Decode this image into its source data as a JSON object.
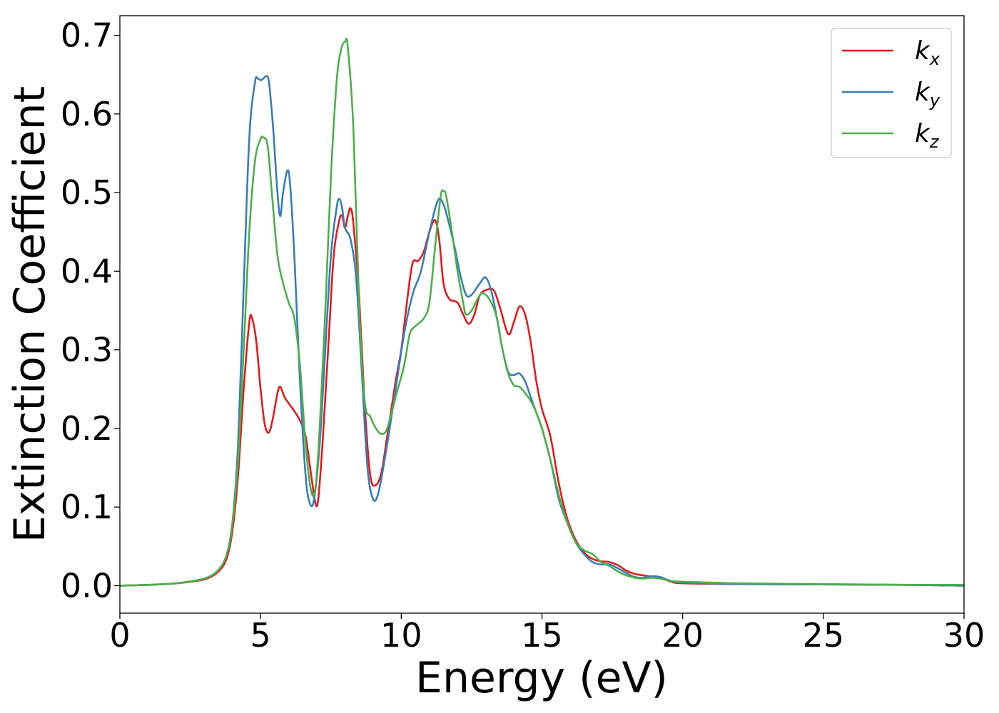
{
  "chart_data": {
    "type": "line",
    "xlabel": "Energy (eV)",
    "ylabel": "Extinction Coefficient",
    "xlim": [
      0,
      30
    ],
    "ylim": [
      -0.035,
      0.725
    ],
    "xticks": [
      0,
      5,
      10,
      15,
      20,
      25,
      30
    ],
    "xtick_labels": [
      "0",
      "5",
      "10",
      "15",
      "20",
      "25",
      "30"
    ],
    "yticks": [
      0.0,
      0.1,
      0.2,
      0.3,
      0.4,
      0.5,
      0.6,
      0.7
    ],
    "ytick_labels": [
      "0.0",
      "0.1",
      "0.2",
      "0.3",
      "0.4",
      "0.5",
      "0.6",
      "0.7"
    ],
    "grid": false,
    "legend_position": "top-right",
    "series": [
      {
        "name": "k",
        "subscript": "x",
        "color": "#e41a1c",
        "points": [
          [
            0,
            0.0
          ],
          [
            1,
            0.001
          ],
          [
            2,
            0.003
          ],
          [
            3,
            0.008
          ],
          [
            3.5,
            0.018
          ],
          [
            3.8,
            0.035
          ],
          [
            4.0,
            0.07
          ],
          [
            4.2,
            0.14
          ],
          [
            4.4,
            0.25
          ],
          [
            4.6,
            0.335
          ],
          [
            4.7,
            0.34
          ],
          [
            4.85,
            0.31
          ],
          [
            5.0,
            0.25
          ],
          [
            5.15,
            0.205
          ],
          [
            5.3,
            0.195
          ],
          [
            5.45,
            0.215
          ],
          [
            5.6,
            0.245
          ],
          [
            5.7,
            0.253
          ],
          [
            5.85,
            0.24
          ],
          [
            6.0,
            0.232
          ],
          [
            6.2,
            0.222
          ],
          [
            6.4,
            0.21
          ],
          [
            6.6,
            0.19
          ],
          [
            6.8,
            0.14
          ],
          [
            6.95,
            0.105
          ],
          [
            7.05,
            0.11
          ],
          [
            7.2,
            0.18
          ],
          [
            7.4,
            0.3
          ],
          [
            7.6,
            0.42
          ],
          [
            7.8,
            0.465
          ],
          [
            7.9,
            0.47
          ],
          [
            8.0,
            0.455
          ],
          [
            8.1,
            0.47
          ],
          [
            8.2,
            0.48
          ],
          [
            8.3,
            0.46
          ],
          [
            8.5,
            0.37
          ],
          [
            8.7,
            0.23
          ],
          [
            8.9,
            0.14
          ],
          [
            9.1,
            0.128
          ],
          [
            9.3,
            0.145
          ],
          [
            9.5,
            0.19
          ],
          [
            9.8,
            0.26
          ],
          [
            10.0,
            0.3
          ],
          [
            10.2,
            0.36
          ],
          [
            10.4,
            0.41
          ],
          [
            10.6,
            0.413
          ],
          [
            10.8,
            0.425
          ],
          [
            11.0,
            0.45
          ],
          [
            11.2,
            0.465
          ],
          [
            11.35,
            0.44
          ],
          [
            11.5,
            0.385
          ],
          [
            11.7,
            0.365
          ],
          [
            12.0,
            0.36
          ],
          [
            12.2,
            0.345
          ],
          [
            12.4,
            0.333
          ],
          [
            12.6,
            0.345
          ],
          [
            12.8,
            0.37
          ],
          [
            13.1,
            0.377
          ],
          [
            13.3,
            0.375
          ],
          [
            13.5,
            0.355
          ],
          [
            13.8,
            0.32
          ],
          [
            14.0,
            0.335
          ],
          [
            14.2,
            0.355
          ],
          [
            14.4,
            0.345
          ],
          [
            14.6,
            0.31
          ],
          [
            14.8,
            0.26
          ],
          [
            15.0,
            0.225
          ],
          [
            15.3,
            0.19
          ],
          [
            15.6,
            0.13
          ],
          [
            15.9,
            0.085
          ],
          [
            16.2,
            0.058
          ],
          [
            16.5,
            0.042
          ],
          [
            16.8,
            0.034
          ],
          [
            17.1,
            0.031
          ],
          [
            17.4,
            0.03
          ],
          [
            17.7,
            0.026
          ],
          [
            18.0,
            0.019
          ],
          [
            18.3,
            0.015
          ],
          [
            18.6,
            0.013
          ],
          [
            19.0,
            0.011
          ],
          [
            19.3,
            0.009
          ],
          [
            19.6,
            0.005
          ],
          [
            20,
            0.003
          ],
          [
            22,
            0.002
          ],
          [
            25,
            0.0015
          ],
          [
            28,
            0.001
          ],
          [
            30,
            0.0
          ]
        ]
      },
      {
        "name": "k",
        "subscript": "y",
        "color": "#377eb8",
        "points": [
          [
            0,
            0.0
          ],
          [
            1,
            0.001
          ],
          [
            2,
            0.003
          ],
          [
            3,
            0.009
          ],
          [
            3.5,
            0.02
          ],
          [
            3.8,
            0.04
          ],
          [
            4.0,
            0.08
          ],
          [
            4.2,
            0.18
          ],
          [
            4.4,
            0.38
          ],
          [
            4.6,
            0.57
          ],
          [
            4.8,
            0.64
          ],
          [
            4.9,
            0.645
          ],
          [
            5.0,
            0.643
          ],
          [
            5.1,
            0.645
          ],
          [
            5.2,
            0.648
          ],
          [
            5.3,
            0.64
          ],
          [
            5.45,
            0.58
          ],
          [
            5.6,
            0.5
          ],
          [
            5.7,
            0.47
          ],
          [
            5.8,
            0.5
          ],
          [
            5.95,
            0.528
          ],
          [
            6.05,
            0.51
          ],
          [
            6.2,
            0.42
          ],
          [
            6.4,
            0.26
          ],
          [
            6.6,
            0.14
          ],
          [
            6.75,
            0.105
          ],
          [
            6.9,
            0.11
          ],
          [
            7.1,
            0.18
          ],
          [
            7.3,
            0.3
          ],
          [
            7.5,
            0.42
          ],
          [
            7.7,
            0.48
          ],
          [
            7.8,
            0.492
          ],
          [
            7.9,
            0.48
          ],
          [
            8.0,
            0.455
          ],
          [
            8.2,
            0.44
          ],
          [
            8.4,
            0.39
          ],
          [
            8.6,
            0.27
          ],
          [
            8.8,
            0.15
          ],
          [
            9.0,
            0.11
          ],
          [
            9.2,
            0.12
          ],
          [
            9.5,
            0.18
          ],
          [
            9.8,
            0.25
          ],
          [
            10.1,
            0.32
          ],
          [
            10.4,
            0.37
          ],
          [
            10.7,
            0.4
          ],
          [
            11.0,
            0.45
          ],
          [
            11.3,
            0.49
          ],
          [
            11.5,
            0.485
          ],
          [
            11.7,
            0.46
          ],
          [
            11.9,
            0.43
          ],
          [
            12.1,
            0.395
          ],
          [
            12.3,
            0.37
          ],
          [
            12.5,
            0.37
          ],
          [
            12.8,
            0.385
          ],
          [
            13.0,
            0.392
          ],
          [
            13.2,
            0.375
          ],
          [
            13.4,
            0.34
          ],
          [
            13.6,
            0.3
          ],
          [
            13.8,
            0.272
          ],
          [
            14.0,
            0.268
          ],
          [
            14.2,
            0.27
          ],
          [
            14.4,
            0.26
          ],
          [
            14.6,
            0.24
          ],
          [
            14.8,
            0.22
          ],
          [
            15.0,
            0.2
          ],
          [
            15.3,
            0.16
          ],
          [
            15.6,
            0.11
          ],
          [
            15.9,
            0.08
          ],
          [
            16.2,
            0.055
          ],
          [
            16.5,
            0.04
          ],
          [
            16.8,
            0.03
          ],
          [
            17.1,
            0.027
          ],
          [
            17.4,
            0.027
          ],
          [
            17.7,
            0.022
          ],
          [
            18.0,
            0.016
          ],
          [
            18.3,
            0.011
          ],
          [
            18.6,
            0.01
          ],
          [
            18.9,
            0.012
          ],
          [
            19.2,
            0.011
          ],
          [
            19.5,
            0.007
          ],
          [
            20,
            0.004
          ],
          [
            22,
            0.002
          ],
          [
            25,
            0.0015
          ],
          [
            28,
            0.001
          ],
          [
            30,
            0.0
          ]
        ]
      },
      {
        "name": "k",
        "subscript": "z",
        "color": "#4daf4a",
        "points": [
          [
            0,
            0.0
          ],
          [
            1,
            0.001
          ],
          [
            2,
            0.003
          ],
          [
            3,
            0.009
          ],
          [
            3.5,
            0.02
          ],
          [
            3.8,
            0.04
          ],
          [
            4.0,
            0.08
          ],
          [
            4.2,
            0.16
          ],
          [
            4.4,
            0.3
          ],
          [
            4.6,
            0.45
          ],
          [
            4.8,
            0.54
          ],
          [
            5.0,
            0.568
          ],
          [
            5.1,
            0.57
          ],
          [
            5.25,
            0.56
          ],
          [
            5.4,
            0.5
          ],
          [
            5.6,
            0.42
          ],
          [
            5.8,
            0.385
          ],
          [
            6.0,
            0.36
          ],
          [
            6.2,
            0.34
          ],
          [
            6.4,
            0.28
          ],
          [
            6.6,
            0.18
          ],
          [
            6.8,
            0.12
          ],
          [
            6.95,
            0.125
          ],
          [
            7.1,
            0.2
          ],
          [
            7.3,
            0.35
          ],
          [
            7.5,
            0.52
          ],
          [
            7.7,
            0.64
          ],
          [
            7.85,
            0.68
          ],
          [
            8.0,
            0.692
          ],
          [
            8.1,
            0.685
          ],
          [
            8.3,
            0.58
          ],
          [
            8.5,
            0.36
          ],
          [
            8.7,
            0.235
          ],
          [
            8.9,
            0.215
          ],
          [
            9.1,
            0.2
          ],
          [
            9.3,
            0.193
          ],
          [
            9.5,
            0.2
          ],
          [
            9.8,
            0.24
          ],
          [
            10.1,
            0.28
          ],
          [
            10.3,
            0.32
          ],
          [
            10.5,
            0.33
          ],
          [
            10.8,
            0.34
          ],
          [
            11.0,
            0.36
          ],
          [
            11.2,
            0.43
          ],
          [
            11.4,
            0.495
          ],
          [
            11.5,
            0.502
          ],
          [
            11.6,
            0.495
          ],
          [
            11.8,
            0.45
          ],
          [
            12.0,
            0.4
          ],
          [
            12.2,
            0.36
          ],
          [
            12.3,
            0.345
          ],
          [
            12.5,
            0.35
          ],
          [
            12.8,
            0.37
          ],
          [
            13.0,
            0.37
          ],
          [
            13.2,
            0.36
          ],
          [
            13.4,
            0.34
          ],
          [
            13.6,
            0.3
          ],
          [
            13.8,
            0.27
          ],
          [
            14.0,
            0.255
          ],
          [
            14.2,
            0.253
          ],
          [
            14.4,
            0.245
          ],
          [
            14.6,
            0.235
          ],
          [
            14.8,
            0.22
          ],
          [
            15.0,
            0.2
          ],
          [
            15.3,
            0.16
          ],
          [
            15.6,
            0.115
          ],
          [
            15.9,
            0.08
          ],
          [
            16.2,
            0.055
          ],
          [
            16.5,
            0.045
          ],
          [
            16.8,
            0.04
          ],
          [
            17.1,
            0.03
          ],
          [
            17.4,
            0.025
          ],
          [
            17.7,
            0.018
          ],
          [
            18.0,
            0.013
          ],
          [
            18.3,
            0.01
          ],
          [
            18.6,
            0.009
          ],
          [
            18.9,
            0.01
          ],
          [
            19.2,
            0.009
          ],
          [
            19.6,
            0.006
          ],
          [
            20,
            0.005
          ],
          [
            22,
            0.003
          ],
          [
            25,
            0.002
          ],
          [
            28,
            0.001
          ],
          [
            30,
            0.001
          ]
        ]
      }
    ]
  }
}
